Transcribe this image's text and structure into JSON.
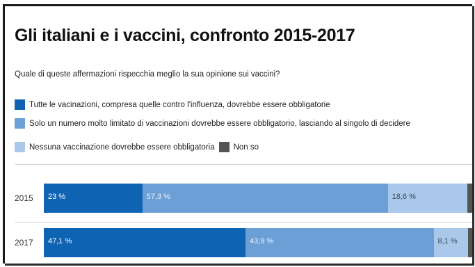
{
  "title": "Gli italiani e i vaccini, confronto 2015-2017",
  "question": "Quale di queste affermazioni rispecchia meglio la sua opinione sui vaccini?",
  "colors": {
    "all_mandatory": "#0f63b3",
    "limited_mandatory": "#6c9fd6",
    "none_mandatory": "#a9c8ea",
    "dont_know": "#555555"
  },
  "legend": [
    {
      "key": "all_mandatory",
      "label": "Tutte le vacinazioni, compresa quelle contro l'influenza, dovrebbe essere obbligatorie"
    },
    {
      "key": "limited_mandatory",
      "label": "Solo un numero molto limitato di vaccinazioni dovrebbe essere obbligatorio, lasciando al singolo di decidere"
    },
    {
      "key": "none_mandatory",
      "label": "Nessuna vaccinazione dovrebbe essere obbligatoria"
    },
    {
      "key": "dont_know",
      "label": "Non so"
    }
  ],
  "chart_data": {
    "type": "bar",
    "orientation": "horizontal-stacked-100",
    "title": "Gli italiani e i vaccini, confronto 2015-2017",
    "categories": [
      "2015",
      "2017"
    ],
    "series": [
      {
        "name": "Tutte le vacinazioni, compresa quelle contro l'influenza, dovrebbe essere obbligatorie",
        "key": "all_mandatory",
        "values": [
          23,
          47.1
        ],
        "labels": [
          "23 %",
          "47,1 %"
        ]
      },
      {
        "name": "Solo un numero molto limitato di vaccinazioni dovrebbe essere obbligatorio, lasciando al singolo di decidere",
        "key": "limited_mandatory",
        "values": [
          57.3,
          43.9
        ],
        "labels": [
          "57,3 %",
          "43,9 %"
        ]
      },
      {
        "name": "Nessuna vaccinazione dovrebbe essere obbligatoria",
        "key": "none_mandatory",
        "values": [
          18.6,
          8.1
        ],
        "labels": [
          "18,6 %",
          "8,1 %"
        ]
      },
      {
        "name": "Non so",
        "key": "dont_know",
        "values": [
          1.1,
          0.9
        ],
        "labels": [
          "",
          ""
        ]
      }
    ],
    "xlim": [
      0,
      100
    ],
    "legend_position": "top"
  }
}
